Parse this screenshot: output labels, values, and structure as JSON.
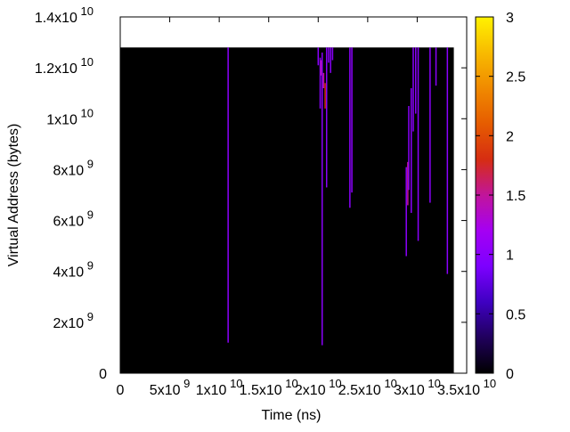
{
  "chart_data": {
    "type": "heatmap",
    "title": "",
    "xlabel": "Time (ns)",
    "ylabel": "Virtual Address (bytes)",
    "xlim": [
      0,
      35000000000
    ],
    "ylim": [
      0,
      14000000000
    ],
    "x_ticks": [
      {
        "value": 0,
        "mantissa": "0",
        "exponent": ""
      },
      {
        "value": 5000000000,
        "mantissa": "5x10",
        "exponent": "9"
      },
      {
        "value": 10000000000,
        "mantissa": "1x10",
        "exponent": "10"
      },
      {
        "value": 15000000000,
        "mantissa": "1.5x10",
        "exponent": "10"
      },
      {
        "value": 20000000000,
        "mantissa": "2x10",
        "exponent": "10"
      },
      {
        "value": 25000000000,
        "mantissa": "2.5x10",
        "exponent": "10"
      },
      {
        "value": 30000000000,
        "mantissa": "3x10",
        "exponent": "10"
      },
      {
        "value": 35000000000,
        "mantissa": "3.5x10",
        "exponent": "10"
      }
    ],
    "y_ticks": [
      {
        "value": 0,
        "mantissa": "0",
        "exponent": ""
      },
      {
        "value": 2000000000,
        "mantissa": "2x10",
        "exponent": "9"
      },
      {
        "value": 4000000000,
        "mantissa": "4x10",
        "exponent": "9"
      },
      {
        "value": 6000000000,
        "mantissa": "6x10",
        "exponent": "9"
      },
      {
        "value": 8000000000,
        "mantissa": "8x10",
        "exponent": "9"
      },
      {
        "value": 10000000000,
        "mantissa": "1x10",
        "exponent": "10"
      },
      {
        "value": 12000000000,
        "mantissa": "1.2x10",
        "exponent": "10"
      },
      {
        "value": 14000000000,
        "mantissa": "1.4x10",
        "exponent": "10"
      }
    ],
    "background_region": {
      "x": [
        0,
        33700000000
      ],
      "y": [
        0,
        12800000000
      ],
      "value": 0
    },
    "events": [
      {
        "x": 10900000000,
        "y_start": 1200000000,
        "y_end": 12800000000,
        "value": 1
      },
      {
        "x": 20000000000,
        "y_start": 12100000000,
        "y_end": 12800000000,
        "value": 1
      },
      {
        "x": 20200000000,
        "y_start": 10400000000,
        "y_end": 12400000000,
        "value": 1
      },
      {
        "x": 20300000000,
        "y_start": 11700000000,
        "y_end": 12300000000,
        "value": 1.5
      },
      {
        "x": 20400000000,
        "y_start": 1100000000,
        "y_end": 12600000000,
        "value": 1
      },
      {
        "x": 20550000000,
        "y_start": 11200000000,
        "y_end": 11800000000,
        "value": 1.5
      },
      {
        "x": 20700000000,
        "y_start": 10400000000,
        "y_end": 11400000000,
        "value": 1.8
      },
      {
        "x": 20850000000,
        "y_start": 7300000000,
        "y_end": 12800000000,
        "value": 1
      },
      {
        "x": 21050000000,
        "y_start": 12200000000,
        "y_end": 12800000000,
        "value": 1
      },
      {
        "x": 21250000000,
        "y_start": 11800000000,
        "y_end": 12800000000,
        "value": 1
      },
      {
        "x": 21450000000,
        "y_start": 12300000000,
        "y_end": 12800000000,
        "value": 1
      },
      {
        "x": 23200000000,
        "y_start": 6500000000,
        "y_end": 12800000000,
        "value": 1
      },
      {
        "x": 23400000000,
        "y_start": 7100000000,
        "y_end": 12800000000,
        "value": 1
      },
      {
        "x": 28900000000,
        "y_start": 4600000000,
        "y_end": 8100000000,
        "value": 1
      },
      {
        "x": 29050000000,
        "y_start": 6600000000,
        "y_end": 8300000000,
        "value": 1.5
      },
      {
        "x": 29150000000,
        "y_start": 7200000000,
        "y_end": 10500000000,
        "value": 1
      },
      {
        "x": 29400000000,
        "y_start": 6300000000,
        "y_end": 11200000000,
        "value": 1
      },
      {
        "x": 29600000000,
        "y_start": 9500000000,
        "y_end": 12800000000,
        "value": 1
      },
      {
        "x": 29850000000,
        "y_start": 10200000000,
        "y_end": 12800000000,
        "value": 1
      },
      {
        "x": 30100000000,
        "y_start": 5200000000,
        "y_end": 12800000000,
        "value": 1
      },
      {
        "x": 31300000000,
        "y_start": 6700000000,
        "y_end": 12800000000,
        "value": 1
      },
      {
        "x": 31900000000,
        "y_start": 11300000000,
        "y_end": 12800000000,
        "value": 1
      },
      {
        "x": 33050000000,
        "y_start": 3900000000,
        "y_end": 12800000000,
        "value": 1
      }
    ],
    "colorbar": {
      "min": 0,
      "max": 3,
      "ticks": [
        {
          "value": 0,
          "label": "0"
        },
        {
          "value": 0.5,
          "label": "0.5"
        },
        {
          "value": 1,
          "label": "1"
        },
        {
          "value": 1.5,
          "label": "1.5"
        },
        {
          "value": 2,
          "label": "2"
        },
        {
          "value": 2.5,
          "label": "2.5"
        },
        {
          "value": 3,
          "label": "3"
        }
      ]
    },
    "colormap": [
      "#000000",
      "#20005c",
      "#3f00c2",
      "#7d00ff",
      "#a500f3",
      "#c1159b",
      "#d62d12",
      "#e65c00",
      "#f08a00",
      "#f8bb00",
      "#fff200"
    ],
    "grid": false,
    "legend": "none"
  }
}
